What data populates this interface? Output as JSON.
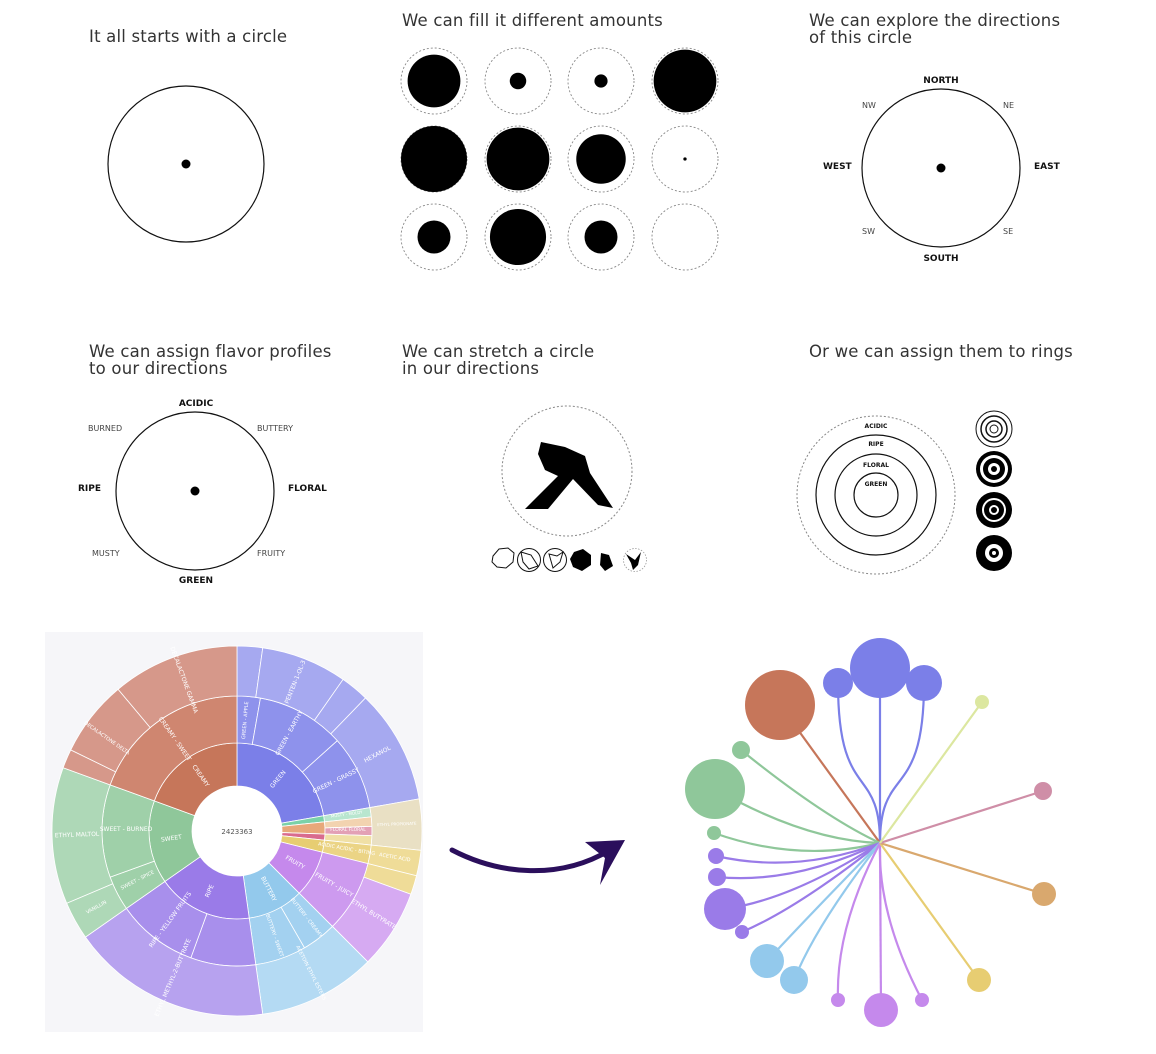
{
  "panels": {
    "p1": {
      "title": "It all starts with a circle"
    },
    "p2": {
      "title": "We can fill it different amounts",
      "fills": [
        0.8,
        0.25,
        0.2,
        0.95,
        1.0,
        0.95,
        0.75,
        0.05,
        0.5,
        0.85,
        0.5,
        0.0
      ]
    },
    "p3": {
      "title_line1": "We can explore the directions",
      "title_line2": "of this circle",
      "north": "NORTH",
      "south": "SOUTH",
      "east": "EAST",
      "west": "WEST",
      "nw": "NW",
      "ne": "NE",
      "sw": "SW",
      "se": "SE"
    },
    "p4": {
      "title_line1": "We can assign flavor profiles",
      "title_line2": "to our directions",
      "top": "ACIDIC",
      "bottom": "GREEN",
      "left": "RIPE",
      "right": "FLORAL",
      "tl": "BURNED",
      "tr": "BUTTERY",
      "bl": "MUSTY",
      "br": "FRUITY"
    },
    "p5": {
      "title_line1": "We can stretch a circle",
      "title_line2": "in our directions"
    },
    "p6": {
      "title": "Or we can assign them to rings",
      "rings": [
        "ACIDIC",
        "RIPE",
        "FLORAL",
        "GREEN"
      ]
    }
  },
  "sunburst": {
    "center_label": "2423363",
    "colors": {
      "green": "#7b7fe8",
      "creamy": "#c6765a",
      "sweet": "#8fc79a",
      "ripe": "#9a7be8",
      "buttery": "#93c9ec",
      "fruity": "#c589ec",
      "acidic": "#e7cd72"
    },
    "inner": [
      {
        "label": "GREEN",
        "color": "#7b7fe8"
      },
      {
        "label": "",
        "color": "#7ad1a8"
      },
      {
        "label": "",
        "color": "#e7a87a"
      },
      {
        "label": "",
        "color": "#d96b8e"
      },
      {
        "label": "FRUITY",
        "color": "#c589ec"
      },
      {
        "label": "BUTTERY",
        "color": "#93c9ec"
      },
      {
        "label": "RIPE",
        "color": "#9a7be8"
      },
      {
        "label": "SWEET",
        "color": "#8fc79a"
      },
      {
        "label": "CREAMY",
        "color": "#c6765a"
      }
    ],
    "middle": [
      {
        "label": "GREEN - APPLE"
      },
      {
        "label": "GREEN - EARTHY"
      },
      {
        "label": "GREEN - GRASSY"
      },
      {
        "label": "MUSTY - MOLDY"
      },
      {
        "label": "FLORAL FLORAL"
      },
      {
        "label": "ACIDIC ACIDIC - BITING"
      },
      {
        "label": "FRUITY - JUICY"
      },
      {
        "label": "BUTTERY - CREAMY"
      },
      {
        "label": "BUTTERY - SWEET"
      },
      {
        "label": "RIPE - YELLOW FRUITS"
      },
      {
        "label": "SWEET - SPICE"
      },
      {
        "label": "SWEET - BURNED"
      },
      {
        "label": "CREAMY - SWEET"
      }
    ],
    "outer": [
      {
        "label": "PENTEN-1-OL-3"
      },
      {
        "label": "HEXANOL"
      },
      {
        "label": "ETHYL PROPIONATE"
      },
      {
        "label": "ACETIC ACID"
      },
      {
        "label": "ETHYL BUTYRATE"
      },
      {
        "label": "ACETOIN ETHYL ESTERS"
      },
      {
        "label": "ETHYL METHYL-2-BUTYRATE"
      },
      {
        "label": "VANILLIN"
      },
      {
        "label": "ETHYL MALTOL"
      },
      {
        "label": "DECALACTONE GAMMA"
      },
      {
        "label": "DECALACTONE DELTA"
      }
    ]
  },
  "radial": {
    "colors": [
      "#7b7fe8",
      "#c6765a",
      "#8fc79a",
      "#9a7be8",
      "#93c9ec",
      "#c589ec",
      "#e7cd72",
      "#d9a86e",
      "#cf8ea7",
      "#dce7a0"
    ]
  }
}
